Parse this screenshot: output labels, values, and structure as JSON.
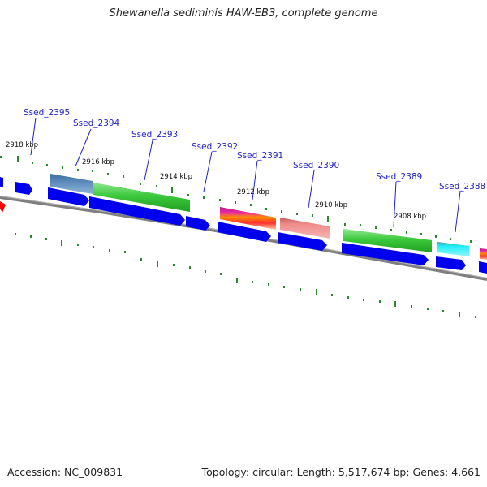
{
  "title": "Shewanella sediminis HAW-EB3, complete genome",
  "footer": {
    "accession": "Accession: NC_009831",
    "topology": "Topology: circular; Length: 5,517,674 bp; Genes: 4,661"
  },
  "coordinate_labels": [
    {
      "id": "k2918",
      "text": "2918 kbp"
    },
    {
      "id": "k2916",
      "text": "2916 kbp"
    },
    {
      "id": "k2914",
      "text": "2914 kbp"
    },
    {
      "id": "k2912",
      "text": "2912 kbp"
    },
    {
      "id": "k2910",
      "text": "2910 kbp"
    },
    {
      "id": "k2908",
      "text": "2908 kbp"
    }
  ],
  "genes": [
    {
      "id": "g2395",
      "label": "Ssed_2395"
    },
    {
      "id": "g2394",
      "label": "Ssed_2394"
    },
    {
      "id": "g2393",
      "label": "Ssed_2393"
    },
    {
      "id": "g2392",
      "label": "Ssed_2392"
    },
    {
      "id": "g2391",
      "label": "Ssed_2391"
    },
    {
      "id": "g2390",
      "label": "Ssed_2390"
    },
    {
      "id": "g2389",
      "label": "Ssed_2389"
    },
    {
      "id": "g2388",
      "label": "Ssed_2388"
    }
  ],
  "colors": {
    "backbone": "#8a8a8a",
    "cds": "#0000ee",
    "tick": "#2a8a2a",
    "label": "#1f1fcc",
    "green_feature": "#3cc83c",
    "steelblue_feature": "#4a7fb5",
    "salmon_feature": "#f08080",
    "cyan_feature": "#22e0f0",
    "magenta_feature": "#e0209a",
    "marker": "#ff0000"
  }
}
